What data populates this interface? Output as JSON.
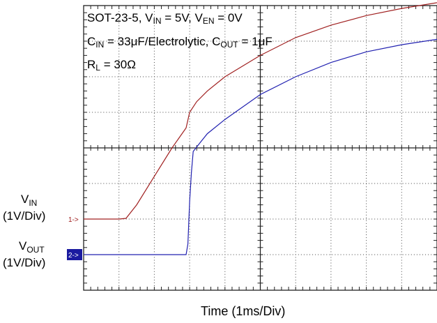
{
  "chart_data": {
    "type": "line",
    "annotations": [
      {
        "parts": [
          [
            "SOT-23-5, V",
            ""
          ],
          [
            "IN",
            "sub"
          ],
          [
            " = 5V, V",
            ""
          ],
          [
            "EN",
            "sub"
          ],
          [
            " = 0V",
            ""
          ]
        ]
      },
      {
        "parts": [
          [
            "C",
            ""
          ],
          [
            "IN",
            "sub"
          ],
          [
            " = 33μF/Electrolytic, C",
            ""
          ],
          [
            "OUT",
            "sub"
          ],
          [
            " = 1μF",
            ""
          ]
        ]
      },
      {
        "parts": [
          [
            "R",
            ""
          ],
          [
            "L",
            "sub"
          ],
          [
            " = 30Ω",
            ""
          ]
        ]
      }
    ],
    "xlabel": "Time (1ms/Div)",
    "x_range_div": [
      0,
      10
    ],
    "y_range_div": [
      0,
      8
    ],
    "grid": true,
    "series": [
      {
        "name": "V",
        "name_sub": "IN",
        "scale": "(1V/Div)",
        "marker": "1",
        "ground_div": 2,
        "color": "#a02020",
        "x_div": [
          0,
          0.5,
          1.0,
          1.2,
          1.5,
          2.0,
          2.5,
          2.9,
          3.0,
          3.2,
          3.5,
          4.0,
          5.0,
          6.0,
          7.0,
          8.0,
          9.0,
          10.0
        ],
        "y_div_rel_ground": [
          0,
          0,
          0,
          0.02,
          0.4,
          1.2,
          2.0,
          2.56,
          3.0,
          3.3,
          3.6,
          4.0,
          4.6,
          5.1,
          5.45,
          5.72,
          5.92,
          6.08
        ]
      },
      {
        "name": "V",
        "name_sub": "OUT",
        "scale": "(1V/Div)",
        "marker": "2",
        "ground_div": 1,
        "color": "#2020b0",
        "x_div": [
          0,
          1.0,
          2.0,
          2.9,
          2.95,
          3.0,
          3.05,
          3.1,
          3.3,
          3.5,
          4.0,
          5.0,
          6.0,
          7.0,
          8.0,
          9.0,
          10.0
        ],
        "y_div_rel_ground": [
          0,
          0,
          0,
          0,
          0.3,
          1.5,
          2.3,
          2.9,
          3.15,
          3.4,
          3.8,
          4.5,
          5.0,
          5.4,
          5.7,
          5.9,
          6.05
        ]
      }
    ]
  }
}
